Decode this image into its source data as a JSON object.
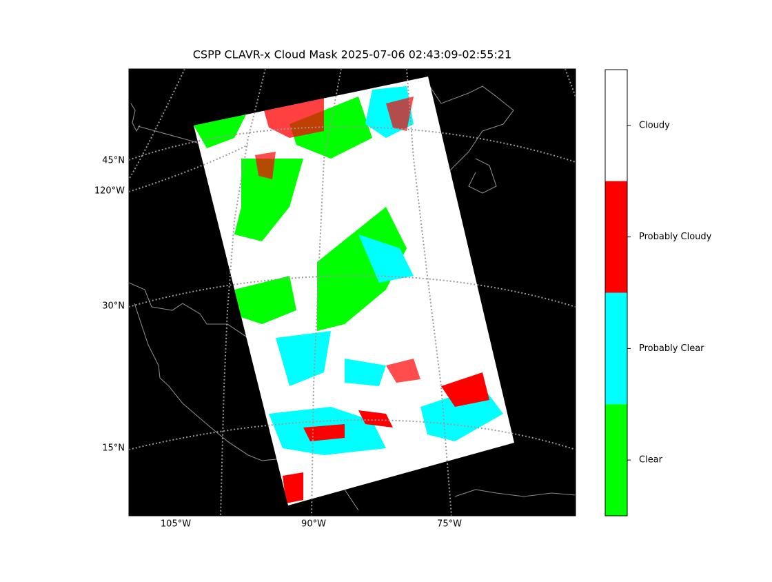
{
  "title": "CSPP CLAVR-x Cloud Mask 2025-07-06 02:43:09-02:55:21",
  "map": {
    "lat_labels": [
      "45°N",
      "30°N",
      "15°N"
    ],
    "lon_labels_left": [
      "120°W"
    ],
    "lon_labels_bottom": [
      "105°W",
      "90°W",
      "75°W"
    ]
  },
  "colorbar": {
    "classes": [
      {
        "label": "Cloudy",
        "color": "#ffffff"
      },
      {
        "label": "Probably Cloudy",
        "color": "#ff0000"
      },
      {
        "label": "Probably Clear",
        "color": "#00ffff"
      },
      {
        "label": "Clear",
        "color": "#00ff00"
      }
    ]
  }
}
